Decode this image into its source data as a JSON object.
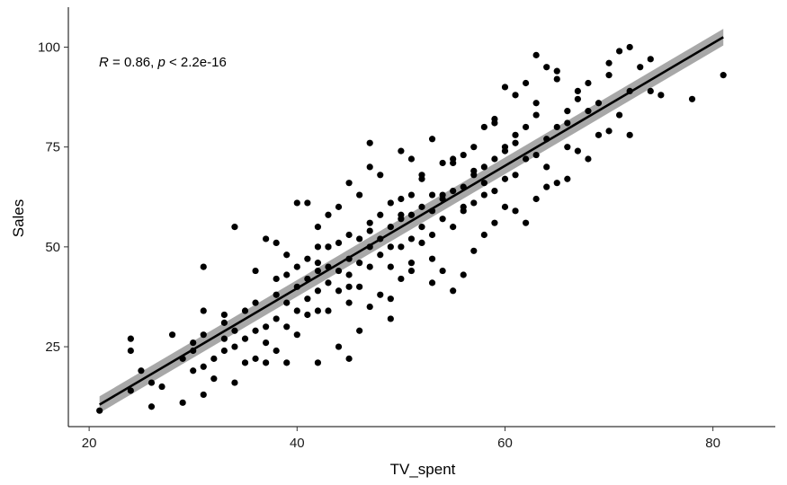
{
  "chart_data": {
    "type": "scatter",
    "xlabel": "TV_spent",
    "ylabel": "Sales",
    "xlim": [
      18,
      86
    ],
    "ylim": [
      5,
      110
    ],
    "x_ticks": [
      20,
      40,
      60,
      80
    ],
    "y_ticks": [
      25,
      50,
      75,
      100
    ],
    "grid": false,
    "annotation": {
      "r_symbol": "R",
      "r_text": " = 0.86, ",
      "p_symbol": "p",
      "p_text": " < 2.2e-16"
    },
    "regression_line": {
      "x": [
        21,
        81
      ],
      "y": [
        10.5,
        102.5
      ],
      "ci_halfwidth": 1.6
    },
    "points": {
      "x": [
        21,
        24,
        24,
        24,
        25,
        26,
        26,
        27,
        28,
        29,
        29,
        30,
        30,
        30,
        31,
        31,
        31,
        31,
        31,
        32,
        32,
        33,
        33,
        33,
        33,
        34,
        34,
        34,
        34,
        35,
        35,
        35,
        36,
        36,
        36,
        36,
        37,
        37,
        37,
        37,
        38,
        38,
        38,
        38,
        38,
        39,
        39,
        39,
        39,
        39,
        40,
        40,
        40,
        40,
        40,
        41,
        41,
        41,
        41,
        41,
        42,
        42,
        42,
        42,
        42,
        42,
        43,
        43,
        43,
        43,
        43,
        44,
        44,
        44,
        44,
        44,
        45,
        45,
        45,
        45,
        45,
        45,
        46,
        46,
        46,
        46,
        46,
        47,
        47,
        47,
        47,
        47,
        47,
        48,
        48,
        48,
        48,
        48,
        49,
        49,
        49,
        49,
        49,
        50,
        50,
        50,
        50,
        50,
        51,
        51,
        51,
        51,
        51,
        52,
        52,
        52,
        52,
        53,
        53,
        53,
        53,
        53,
        54,
        54,
        54,
        54,
        55,
        55,
        55,
        55,
        56,
        56,
        56,
        56,
        57,
        57,
        57,
        57,
        58,
        58,
        58,
        58,
        59,
        59,
        59,
        59,
        60,
        60,
        60,
        60,
        61,
        61,
        61,
        61,
        62,
        62,
        62,
        63,
        63,
        63,
        63,
        64,
        64,
        64,
        65,
        65,
        65,
        66,
        66,
        66,
        67,
        67,
        68,
        68,
        69,
        70,
        70,
        71,
        72,
        72,
        73,
        74,
        74,
        75,
        78,
        81,
        42,
        43,
        45,
        47,
        49,
        50,
        51,
        52,
        53,
        54,
        55,
        56,
        57,
        58,
        59,
        60,
        61,
        62,
        63,
        64,
        65,
        66,
        67,
        68,
        69,
        70,
        71,
        72
      ],
      "y": [
        9,
        14,
        24,
        27,
        19,
        10,
        16,
        15,
        28,
        11,
        22,
        19,
        26,
        24,
        13,
        20,
        28,
        45,
        34,
        17,
        22,
        33,
        24,
        27,
        31,
        16,
        25,
        29,
        55,
        21,
        27,
        34,
        22,
        29,
        36,
        44,
        21,
        26,
        30,
        52,
        24,
        32,
        38,
        42,
        51,
        21,
        30,
        36,
        43,
        48,
        28,
        34,
        40,
        45,
        61,
        33,
        37,
        42,
        47,
        61,
        34,
        39,
        44,
        50,
        55,
        21,
        34,
        41,
        45,
        50,
        58,
        25,
        39,
        44,
        51,
        60,
        22,
        36,
        43,
        47,
        53,
        66,
        29,
        40,
        46,
        52,
        63,
        35,
        45,
        50,
        56,
        70,
        76,
        38,
        48,
        52,
        58,
        68,
        32,
        45,
        50,
        55,
        61,
        42,
        50,
        57,
        62,
        74,
        46,
        52,
        58,
        63,
        72,
        51,
        55,
        60,
        67,
        41,
        53,
        59,
        63,
        77,
        44,
        57,
        62,
        71,
        39,
        55,
        64,
        71,
        43,
        59,
        65,
        73,
        49,
        61,
        68,
        75,
        53,
        63,
        70,
        80,
        56,
        64,
        72,
        81,
        60,
        67,
        74,
        90,
        59,
        68,
        76,
        88,
        56,
        72,
        80,
        98,
        62,
        73,
        83,
        95,
        70,
        77,
        92,
        66,
        80,
        84,
        67,
        75,
        87,
        74,
        91,
        72,
        86,
        79,
        93,
        83,
        89,
        78,
        95,
        89,
        97,
        88,
        87,
        93,
        46,
        50,
        40,
        54,
        37,
        58,
        44,
        68,
        47,
        63,
        72,
        60,
        69,
        66,
        82,
        75,
        78,
        91,
        86,
        65,
        94,
        81,
        89,
        84,
        78,
        96,
        99,
        100
      ]
    }
  }
}
